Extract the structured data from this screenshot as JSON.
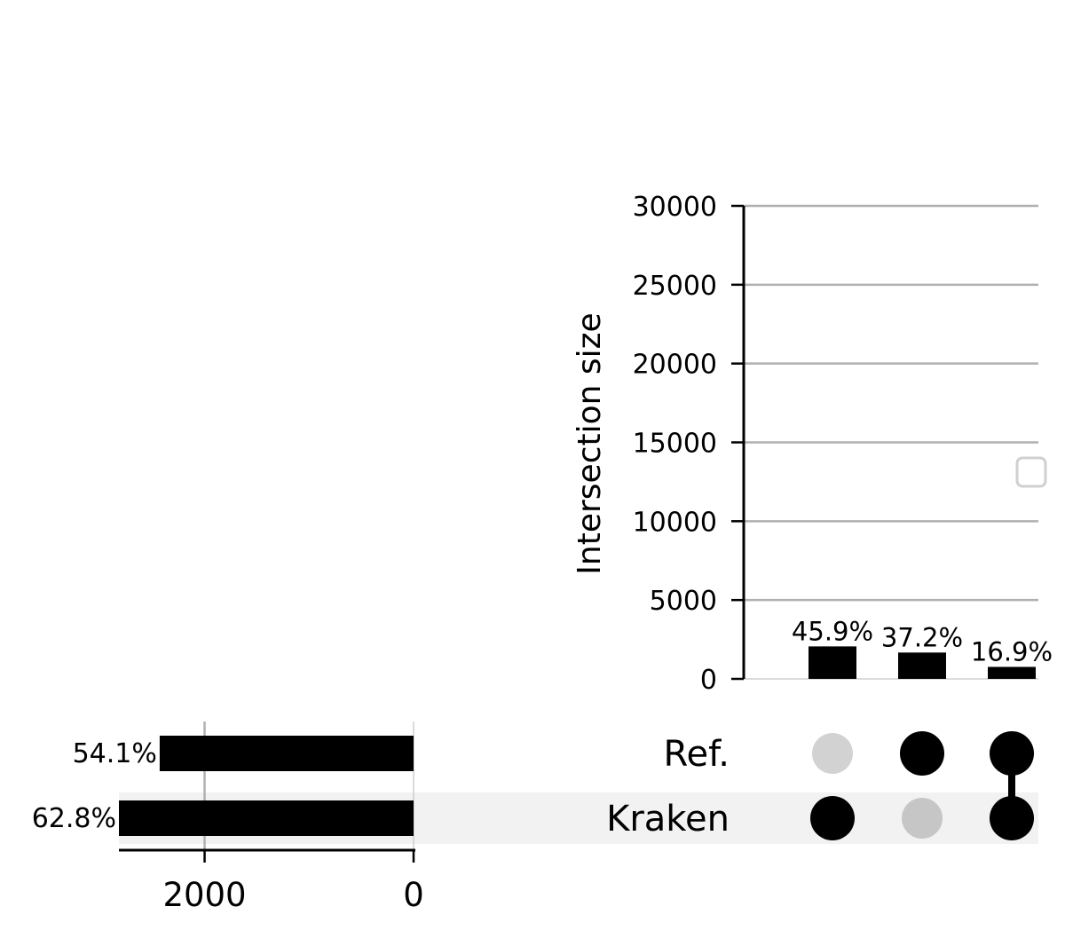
{
  "chart_data": {
    "type": "bar",
    "ylabel": "Intersection size",
    "ylim": [
      0,
      30000
    ],
    "yticks": [
      0,
      5000,
      10000,
      15000,
      20000,
      25000,
      30000
    ],
    "grid": true,
    "sets": [
      "Ref.",
      "Kraken"
    ],
    "intersections": [
      {
        "members": [
          "Kraken"
        ],
        "value": 2060,
        "label": "45.9%"
      },
      {
        "members": [
          "Ref."
        ],
        "value": 1670,
        "label": "37.2%"
      },
      {
        "members": [
          "Ref.",
          "Kraken"
        ],
        "value": 760,
        "label": "16.9%"
      }
    ],
    "set_sizes": [
      {
        "set": "Ref.",
        "value": 2430,
        "label": "54.1%"
      },
      {
        "set": "Kraken",
        "value": 2820,
        "label": "62.8%"
      }
    ],
    "set_size_xlim": [
      0,
      2820
    ],
    "set_size_ticks": [
      2000,
      0
    ],
    "legend": "empty box, right"
  }
}
